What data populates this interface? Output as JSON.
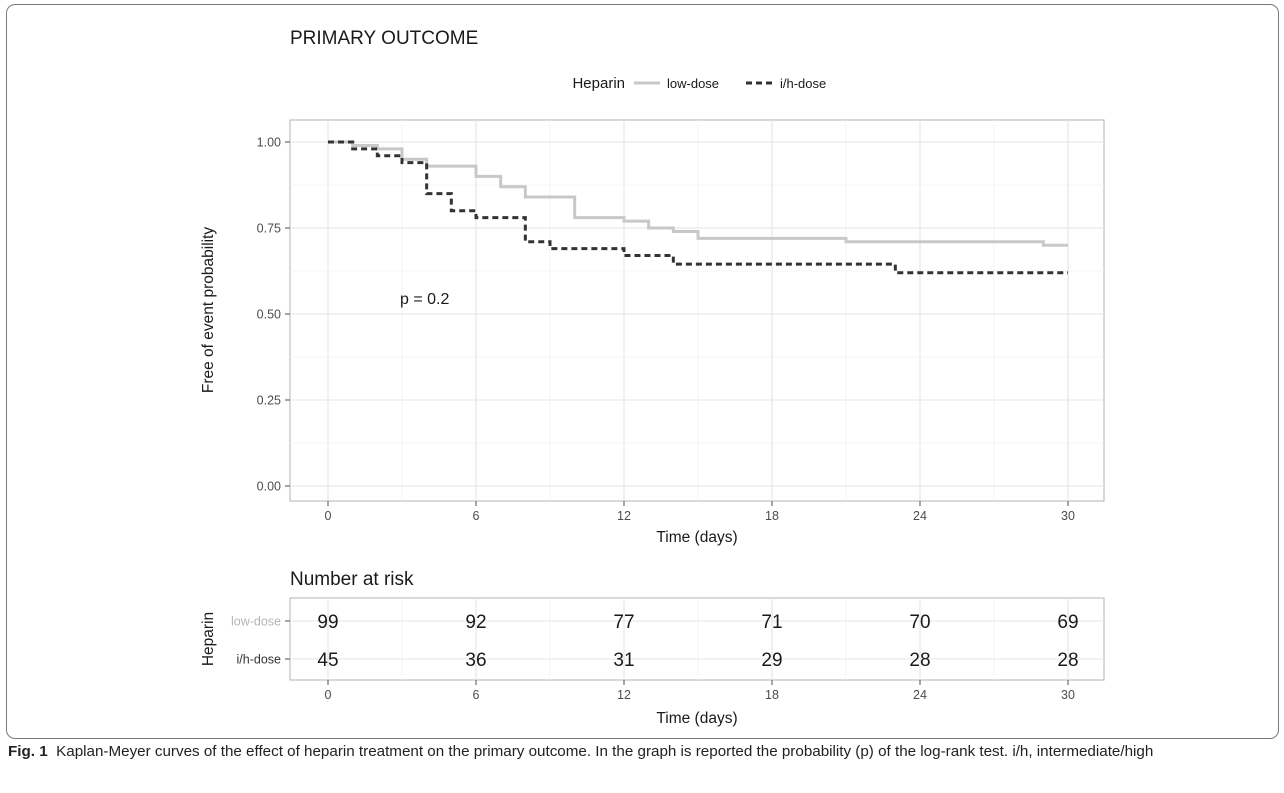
{
  "chart_data": [
    {
      "type": "line",
      "subtype": "kaplan-meier step",
      "title": "PRIMARY OUTCOME",
      "xlabel": "Time (days)",
      "ylabel": "Free of event probability",
      "xlim": [
        0,
        30
      ],
      "ylim": [
        0,
        1
      ],
      "x_ticks": [
        "0",
        "6",
        "12",
        "18",
        "24",
        "30"
      ],
      "y_ticks": [
        "0.00",
        "0.25",
        "0.50",
        "0.75",
        "1.00"
      ],
      "grid": true,
      "legend": {
        "title": "Heparin",
        "position": "top"
      },
      "annotation": "p = 0.2",
      "series": [
        {
          "name": "low-dose",
          "color": "#c8c8c8",
          "dash": "solid",
          "points": [
            [
              0,
              1.0
            ],
            [
              1,
              0.99
            ],
            [
              2,
              0.98
            ],
            [
              3,
              0.95
            ],
            [
              4,
              0.93
            ],
            [
              6,
              0.9
            ],
            [
              7,
              0.87
            ],
            [
              8,
              0.84
            ],
            [
              10,
              0.78
            ],
            [
              12,
              0.77
            ],
            [
              13,
              0.75
            ],
            [
              14,
              0.74
            ],
            [
              15,
              0.72
            ],
            [
              21,
              0.71
            ],
            [
              29,
              0.7
            ],
            [
              30,
              0.7
            ]
          ]
        },
        {
          "name": "i/h-dose",
          "color": "#333333",
          "dash": "dashed",
          "points": [
            [
              0,
              1.0
            ],
            [
              1,
              0.98
            ],
            [
              2,
              0.96
            ],
            [
              3,
              0.94
            ],
            [
              4,
              0.85
            ],
            [
              5,
              0.8
            ],
            [
              6,
              0.78
            ],
            [
              8,
              0.71
            ],
            [
              9,
              0.69
            ],
            [
              12,
              0.67
            ],
            [
              14,
              0.645
            ],
            [
              23,
              0.62
            ],
            [
              30,
              0.62
            ]
          ]
        }
      ]
    },
    {
      "type": "table",
      "title": "Number at risk",
      "xlabel": "Time (days)",
      "ylabel": "Heparin",
      "x_ticks": [
        "0",
        "6",
        "12",
        "18",
        "24",
        "30"
      ],
      "columns": [
        0,
        6,
        12,
        18,
        24,
        30
      ],
      "rows": [
        {
          "name": "low-dose",
          "color": "#c8c8c8",
          "values": [
            99,
            92,
            77,
            71,
            70,
            69
          ]
        },
        {
          "name": "i/h-dose",
          "color": "#333333",
          "values": [
            45,
            36,
            31,
            29,
            28,
            28
          ]
        }
      ]
    }
  ],
  "caption": {
    "label": "Fig. 1",
    "text": "Kaplan-Meyer curves of the effect of heparin treatment on the primary outcome. In the graph is reported the probability (p) of the log-rank test. i/h, intermediate/high"
  }
}
